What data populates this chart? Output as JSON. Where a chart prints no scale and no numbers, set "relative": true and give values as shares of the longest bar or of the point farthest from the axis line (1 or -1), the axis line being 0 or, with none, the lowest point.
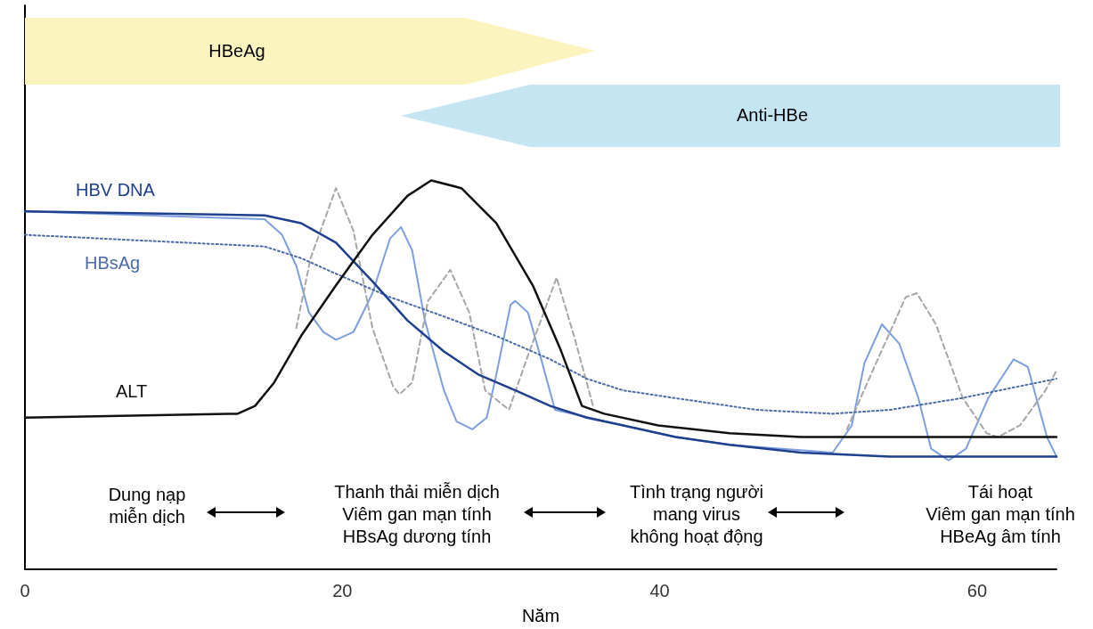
{
  "chart_data": {
    "type": "line",
    "relative": true,
    "xlabel": "Năm",
    "xlim": [
      0,
      65
    ],
    "xticks": [
      0,
      20,
      40,
      60
    ],
    "grid": false,
    "legend": false,
    "marker": "none",
    "annotations": [
      "HBeAg",
      "Anti-HBe",
      "Dung nạp\nmiễn dịch",
      "Thanh thải miễn dịch\nViêm gan mạn tính\nHBsAg dương tính",
      "Tình trạng người\nmang virus\nkhông hoạt động",
      "Tái hoạt\nViêm gan mạn tính\nHBeAg âm tính"
    ],
    "series": [
      {
        "color": "#7d9ee0",
        "line_style": "solid",
        "x": [
          0,
          15.1,
          16.2,
          17.1,
          17.9,
          18.8,
          19.6,
          20.7,
          21.9,
          23,
          23.7,
          24.4,
          25.2,
          26.4,
          27.2,
          28.2,
          29.1,
          29.7,
          30.6,
          30.9,
          31.7,
          32.6,
          33.4,
          37.7,
          41,
          44.4,
          50.9,
          52.1,
          52.9,
          54,
          55.1,
          56.3,
          57.1,
          58.2,
          59.3,
          60.7,
          62.3,
          63.2,
          64.4,
          65
        ],
        "values": [
          0.92,
          0.9,
          0.86,
          0.78,
          0.66,
          0.61,
          0.59,
          0.61,
          0.71,
          0.85,
          0.88,
          0.82,
          0.64,
          0.46,
          0.38,
          0.36,
          0.39,
          0.5,
          0.68,
          0.69,
          0.66,
          0.53,
          0.41,
          0.37,
          0.34,
          0.32,
          0.3,
          0.37,
          0.53,
          0.63,
          0.58,
          0.44,
          0.31,
          0.28,
          0.31,
          0.44,
          0.54,
          0.52,
          0.34,
          0.29
        ]
      },
      {
        "color": "#a6a6a6",
        "line_style": "dashed",
        "x": [
          17.1,
          18,
          19.6,
          20.7,
          21.9,
          23.2,
          23.6,
          24.4,
          25.4,
          26.8,
          28,
          29,
          30.5,
          31.7,
          33.5,
          34.6,
          35.8,
          44,
          51.8,
          53.3,
          55.5,
          56.2,
          57.4,
          59.1,
          60.6,
          61.3,
          62.7,
          64.3,
          65
        ],
        "values": [
          0.62,
          0.8,
          0.98,
          0.87,
          0.62,
          0.47,
          0.45,
          0.48,
          0.69,
          0.77,
          0.66,
          0.46,
          0.41,
          0.55,
          0.75,
          0.6,
          0.42,
          null,
          0.36,
          0.5,
          0.7,
          0.71,
          0.63,
          0.44,
          0.35,
          0.34,
          0.37,
          0.46,
          0.51
        ]
      },
      {
        "name": "HBsAg",
        "color": "#4a6aa8",
        "line_style": "dotted",
        "x": [
          0,
          15.1,
          17.4,
          19.6,
          23,
          26.4,
          29.7,
          33.1,
          35.4,
          37.7,
          41,
          46.1,
          50.9,
          54.5,
          59,
          65
        ],
        "values": [
          0.86,
          0.83,
          0.8,
          0.76,
          0.7,
          0.65,
          0.6,
          0.54,
          0.49,
          0.46,
          0.44,
          0.41,
          0.4,
          0.41,
          0.44,
          0.49
        ]
      },
      {
        "name": "HBV DNA",
        "color": "#1f3f8f",
        "line_style": "solid",
        "x": [
          0,
          15.1,
          17.4,
          19.6,
          21.9,
          24.1,
          26.4,
          28.6,
          30.9,
          33.1,
          35.4,
          37.7,
          41,
          44.4,
          48.9,
          54.5,
          59,
          65
        ],
        "values": [
          0.92,
          0.91,
          0.89,
          0.84,
          0.74,
          0.64,
          0.56,
          0.5,
          0.46,
          0.42,
          0.39,
          0.37,
          0.34,
          0.32,
          0.3,
          0.29,
          0.29,
          0.29
        ]
      },
      {
        "name": "ALT",
        "color": "#111111",
        "line_style": "solid",
        "x": [
          0,
          13.4,
          14.5,
          15.7,
          17.4,
          19.6,
          21.9,
          24.1,
          25.6,
          27.5,
          29.7,
          32,
          33.7,
          35.1,
          36.5,
          39.9,
          44.4,
          48.9,
          54.5,
          65
        ],
        "values": [
          0.39,
          0.4,
          0.42,
          0.48,
          0.6,
          0.73,
          0.86,
          0.96,
          1.0,
          0.98,
          0.89,
          0.73,
          0.57,
          0.42,
          0.4,
          0.37,
          0.35,
          0.34,
          0.34,
          0.34
        ]
      }
    ]
  }
}
